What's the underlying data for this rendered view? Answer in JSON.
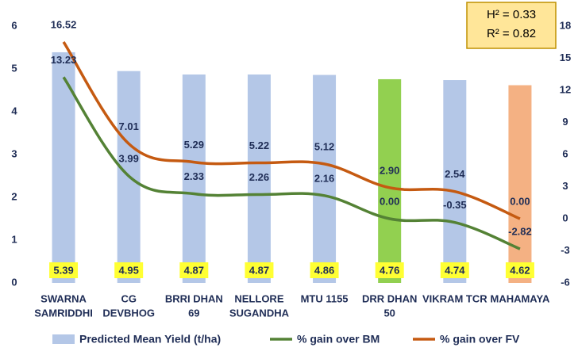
{
  "chart_data": {
    "type": "bar-line",
    "annotations": [
      "H² = 0.33",
      "R² = 0.82"
    ],
    "categories": [
      [
        "SWARNA",
        "SAMRIDDHI"
      ],
      [
        "CG",
        "DEVBHOG"
      ],
      [
        "BRRI DHAN",
        "69"
      ],
      [
        "NELLORE",
        "SUGANDHA"
      ],
      [
        "MTU 1155"
      ],
      [
        "DRR DHAN",
        "50"
      ],
      [
        "VIKRAM TCR"
      ],
      [
        "MAHAMAYA"
      ]
    ],
    "series": [
      {
        "name": "Predicted Mean Yield (t/ha)",
        "type": "bar",
        "color": "#b4c7e7",
        "colors": [
          "#b4c7e7",
          "#b4c7e7",
          "#b4c7e7",
          "#b4c7e7",
          "#b4c7e7",
          "#92d050",
          "#b4c7e7",
          "#f4b183"
        ],
        "values": [
          5.39,
          4.95,
          4.87,
          4.87,
          4.86,
          4.76,
          4.74,
          4.62
        ]
      },
      {
        "name": "% gain over BM",
        "type": "line",
        "axis": "y2",
        "color": "#548235",
        "values": [
          13.23,
          3.99,
          2.33,
          2.26,
          2.16,
          0.0,
          -0.35,
          -2.82
        ],
        "value_labels": [
          "13.23",
          "3.99",
          "2.33",
          "2.26",
          "2.16",
          "0.00",
          "-0.35",
          "-2.82"
        ]
      },
      {
        "name": "% gain over FV",
        "type": "line",
        "axis": "y2",
        "color": "#c55a11",
        "values": [
          16.52,
          7.01,
          5.29,
          5.22,
          5.12,
          2.9,
          2.54,
          0.0
        ],
        "value_labels": [
          "16.52",
          "7.01",
          "5.29",
          "5.22",
          "5.12",
          "2.90",
          "2.54",
          "0.00"
        ]
      }
    ],
    "ylim": [
      0,
      6
    ],
    "yticks": [
      0,
      1,
      2,
      3,
      4,
      5,
      6
    ],
    "y2lim": [
      -6,
      18
    ],
    "y2ticks": [
      -6,
      -3,
      0,
      3,
      6,
      9,
      12,
      15,
      18
    ]
  }
}
